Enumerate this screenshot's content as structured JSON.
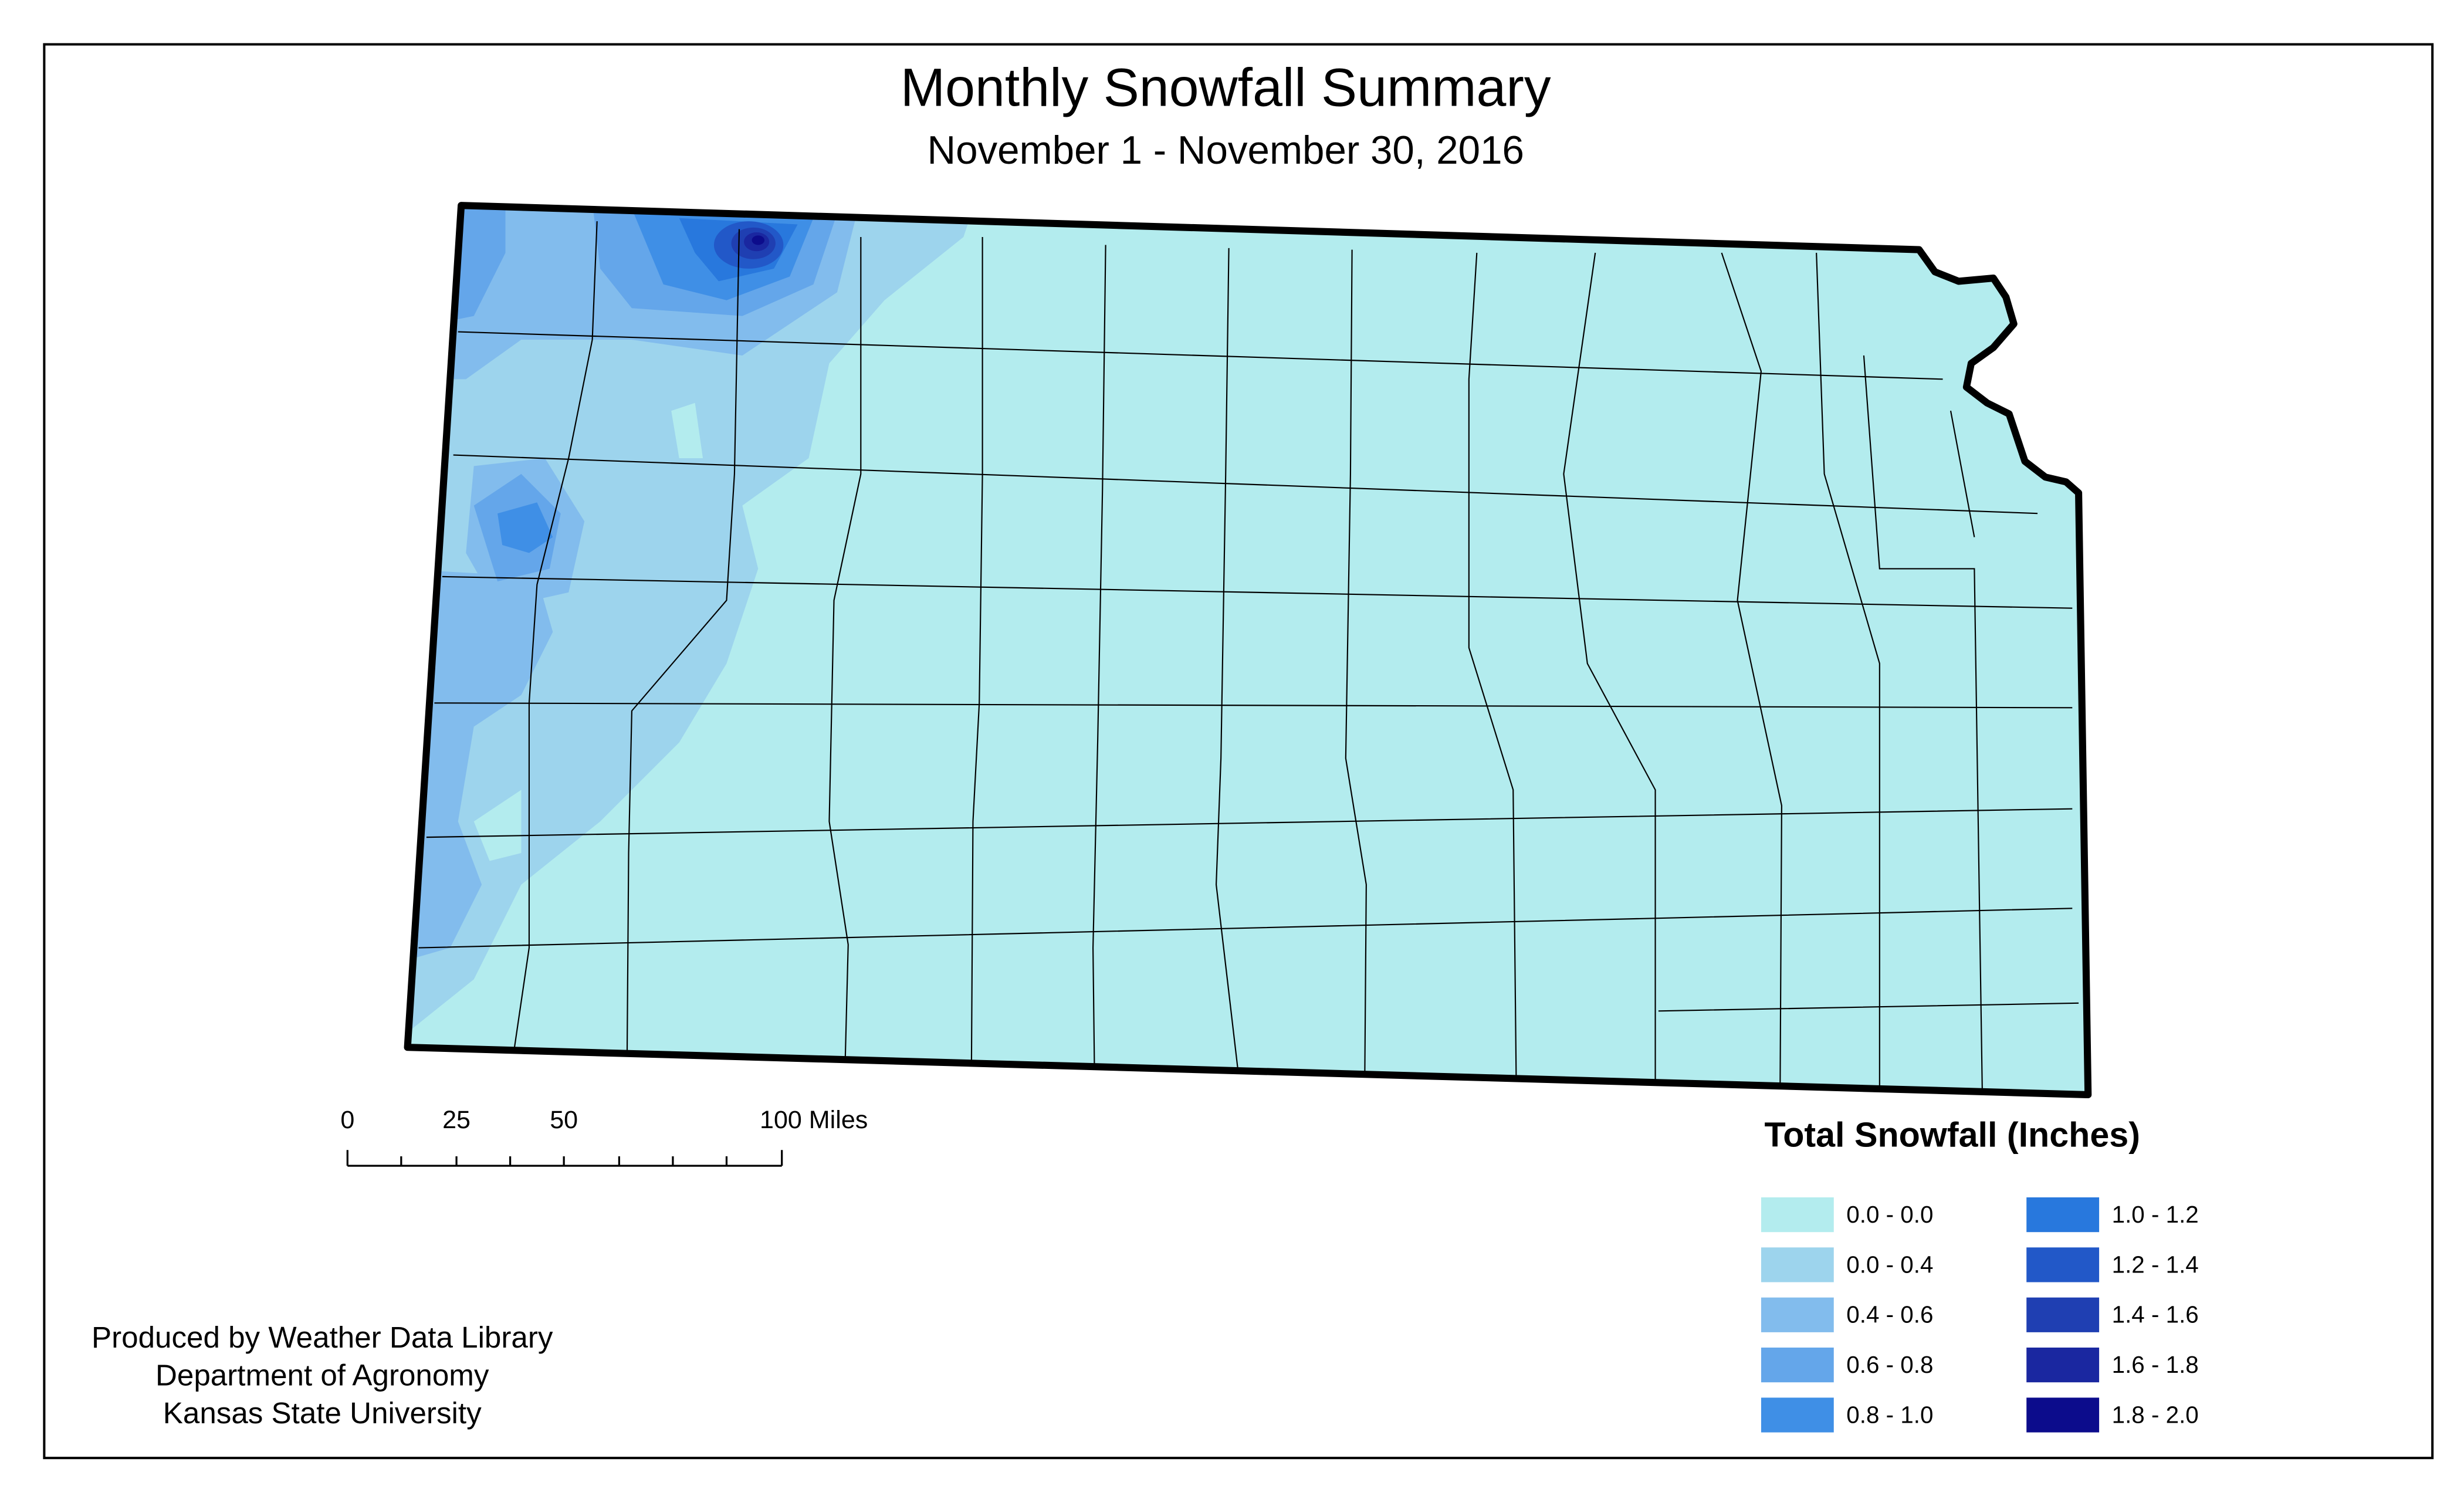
{
  "title": "Monthly Snowfall Summary",
  "subtitle": "November 1 - November 30, 2016",
  "scale_bar": {
    "labels": [
      "0",
      "25",
      "50",
      "100 Miles"
    ]
  },
  "legend": {
    "title": "Total Snowfall (Inches)",
    "items": [
      {
        "label": "0.0 - 0.0",
        "color": "#b3ecee"
      },
      {
        "label": "0.0 - 0.4",
        "color": "#9dd4ed"
      },
      {
        "label": "0.4 - 0.6",
        "color": "#82bced"
      },
      {
        "label": "0.6 - 0.8",
        "color": "#64a6ea"
      },
      {
        "label": "0.8 - 1.0",
        "color": "#3f8fe6"
      },
      {
        "label": "1.0 - 1.2",
        "color": "#2878dd"
      },
      {
        "label": "1.2 - 1.4",
        "color": "#2258c8"
      },
      {
        "label": "1.4 - 1.6",
        "color": "#1f3fb2"
      },
      {
        "label": "1.6 - 1.8",
        "color": "#1a27a0"
      },
      {
        "label": "1.8 - 2.0",
        "color": "#0c0c8c"
      }
    ]
  },
  "credits": [
    "Produced by Weather Data Library",
    "Department of Agronomy",
    "Kansas State University"
  ]
}
